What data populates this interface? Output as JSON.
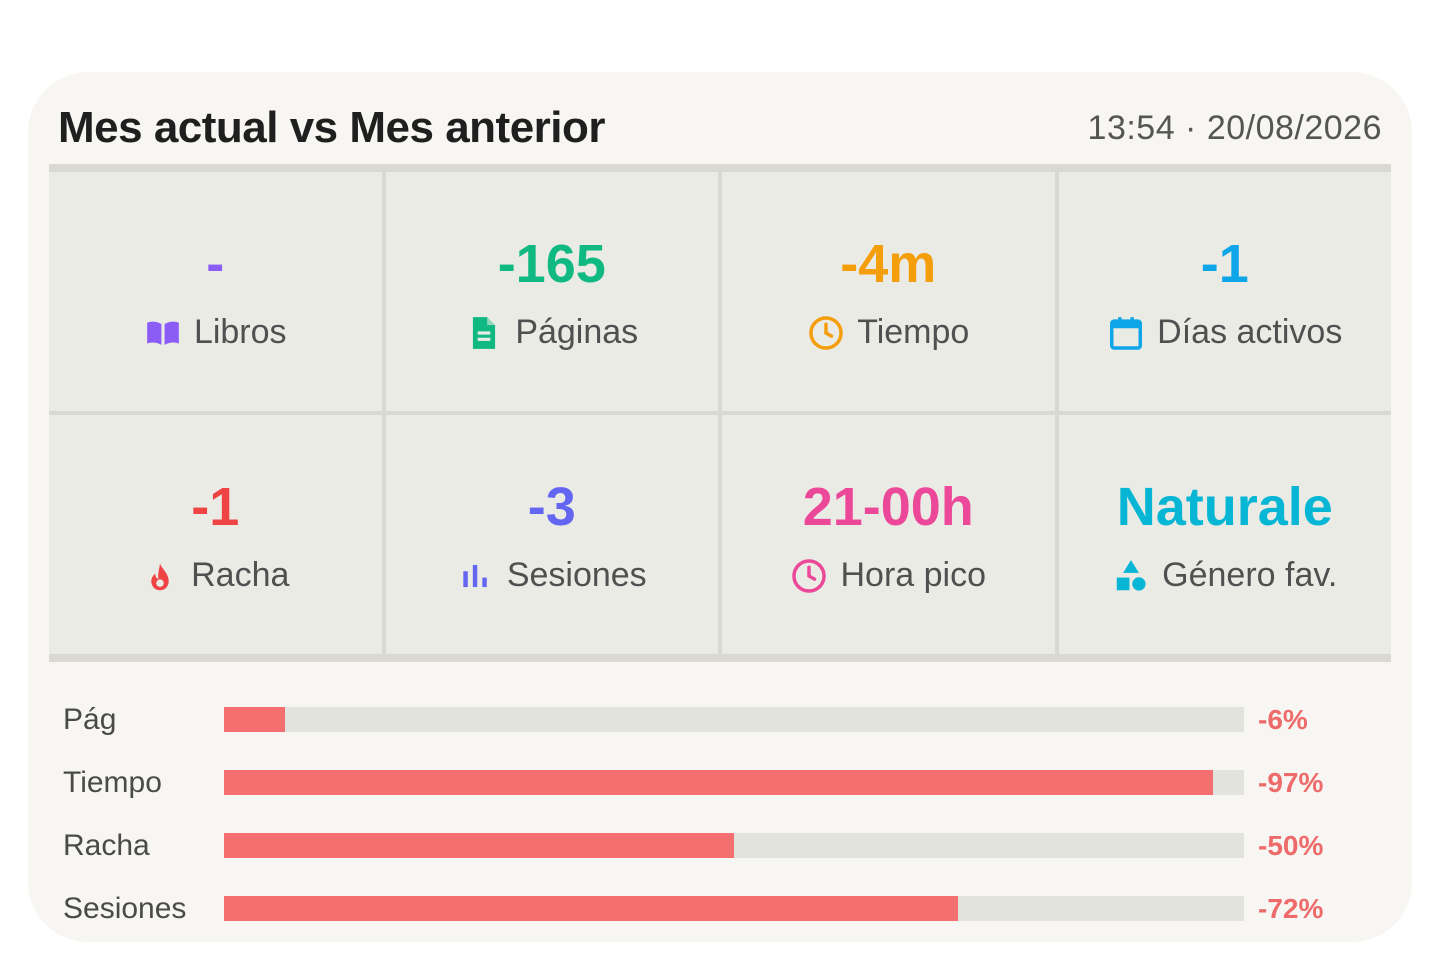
{
  "header": {
    "title": "Mes actual vs Mes anterior",
    "timestamp": "13:54 · 20/08/2026"
  },
  "stats": [
    {
      "value": "-",
      "label": "Libros",
      "color": "#8b5cf6",
      "icon": "book-icon"
    },
    {
      "value": "-165",
      "label": "Páginas",
      "color": "#10b981",
      "icon": "document-icon"
    },
    {
      "value": "-4m",
      "label": "Tiempo",
      "color": "#f59e0b",
      "icon": "clock-icon"
    },
    {
      "value": "-1",
      "label": "Días activos",
      "color": "#0ea5e9",
      "icon": "calendar-icon"
    },
    {
      "value": "-1",
      "label": "Racha",
      "color": "#ef4444",
      "icon": "flame-icon"
    },
    {
      "value": "-3",
      "label": "Sesiones",
      "color": "#6366f1",
      "icon": "bar-chart-icon"
    },
    {
      "value": "21-00h",
      "label": "Hora pico",
      "color": "#ec4899",
      "icon": "clock-icon"
    },
    {
      "value": "Naturale",
      "label": "Género fav.",
      "color": "#06b6d4",
      "icon": "shapes-icon"
    }
  ],
  "comparison": [
    {
      "label": "Pág",
      "pct_text": "-6%",
      "fill_fraction": 0.06
    },
    {
      "label": "Tiempo",
      "pct_text": "-97%",
      "fill_fraction": 0.97
    },
    {
      "label": "Racha",
      "pct_text": "-50%",
      "fill_fraction": 0.5
    },
    {
      "label": "Sesiones",
      "pct_text": "-72%",
      "fill_fraction": 0.72
    }
  ],
  "colors": {
    "bar_fill": "#f47070",
    "bar_track": "#e3e3de",
    "negative_text": "#ee6b6b"
  }
}
